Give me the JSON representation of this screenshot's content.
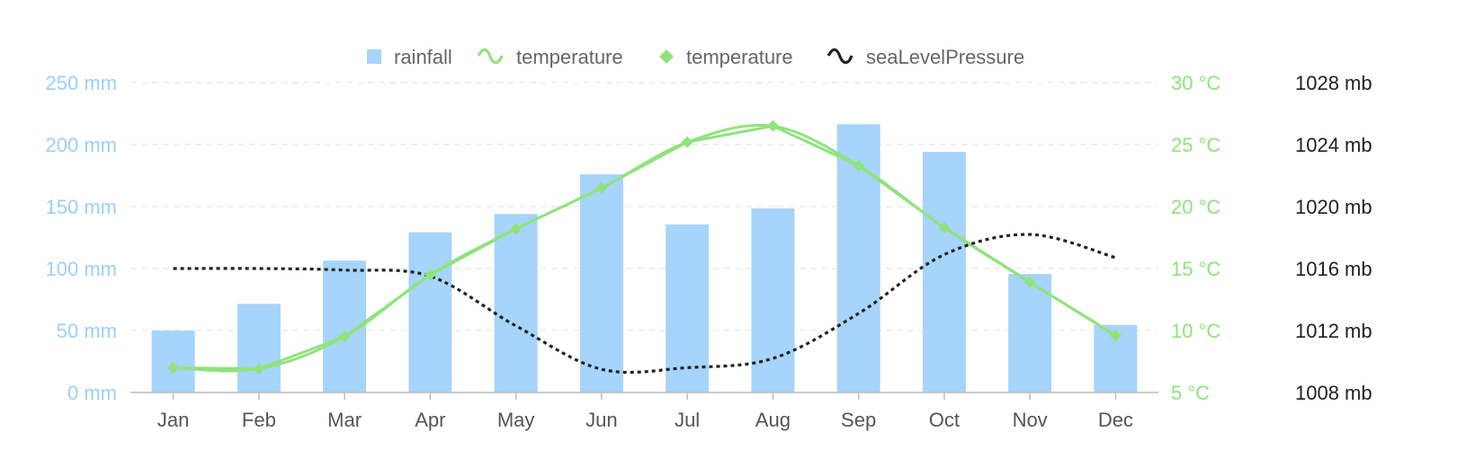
{
  "chart_data": {
    "type": "bar",
    "categories": [
      "Jan",
      "Feb",
      "Mar",
      "Apr",
      "May",
      "Jun",
      "Jul",
      "Aug",
      "Sep",
      "Oct",
      "Nov",
      "Dec"
    ],
    "legend": {
      "position": "top-center",
      "items": [
        {
          "label": "rainfall",
          "marker": "square",
          "color": "#a6d4fa"
        },
        {
          "label": "temperature",
          "marker": "smooth-line",
          "color": "#8fe37c"
        },
        {
          "label": "temperature",
          "marker": "diamond",
          "color": "#8fe37c"
        },
        {
          "label": "seaLevelPressure",
          "marker": "smooth-line",
          "color": "#222222"
        }
      ]
    },
    "series": [
      {
        "name": "rainfall",
        "type": "bar",
        "axis": "left",
        "color": "#a6d4fa",
        "values": [
          49.9,
          71.5,
          106.4,
          129.2,
          144.0,
          176.0,
          135.6,
          148.5,
          216.4,
          194.1,
          95.6,
          54.4
        ]
      },
      {
        "name": "temperature",
        "type": "spline",
        "axis": "right1",
        "color": "#8fe37c",
        "values": [
          7.0,
          6.9,
          9.5,
          14.5,
          18.2,
          21.5,
          25.2,
          26.5,
          23.3,
          18.3,
          13.9,
          9.6
        ]
      },
      {
        "name": "temperature",
        "type": "line-markers",
        "axis": "right1",
        "color": "#8fe37c",
        "values": [
          7.0,
          6.9,
          9.5,
          14.5,
          18.2,
          21.5,
          25.2,
          26.5,
          23.3,
          18.3,
          13.9,
          9.6
        ]
      },
      {
        "name": "seaLevelPressure",
        "type": "spline-dotted",
        "axis": "right2",
        "color": "#222222",
        "values": [
          1016,
          1016,
          1015.9,
          1015.5,
          1012.3,
          1009.5,
          1009.6,
          1010.2,
          1013.1,
          1016.9,
          1018.2,
          1016.7
        ]
      }
    ],
    "axes": {
      "left": {
        "min": 0,
        "max": 250,
        "step": 50,
        "unit": " mm",
        "color": "#9ccff8"
      },
      "right1": {
        "min": 5,
        "max": 30,
        "step": 5,
        "unit": " °C",
        "color": "#8fe37c"
      },
      "right2": {
        "min": 1008,
        "max": 1028,
        "step": 4,
        "unit": " mb",
        "color": "#222222"
      }
    },
    "grid": true
  }
}
